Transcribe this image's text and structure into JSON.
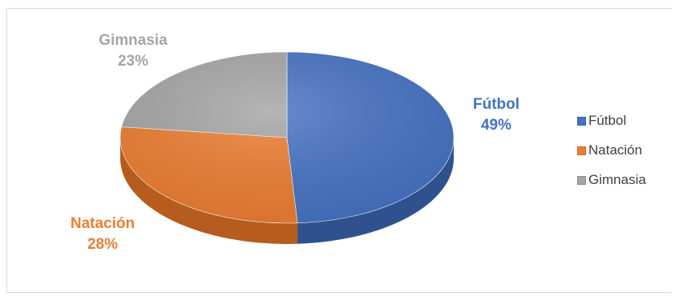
{
  "chart_data": {
    "type": "pie",
    "title": "",
    "slices": [
      {
        "name": "Fútbol",
        "value": 49,
        "label": "49%",
        "color": "#4472c4",
        "side": "#2f528f",
        "text_color": "#4472c4"
      },
      {
        "name": "Natación",
        "value": 28,
        "label": "28%",
        "color": "#ed7d31",
        "side": "#b65c1e",
        "text_color": "#ed7d31"
      },
      {
        "name": "Gimnasia",
        "value": 23,
        "label": "23%",
        "color": "#a5a5a5",
        "side": "#7c7c7c",
        "text_color": "#a5a5a5"
      }
    ],
    "legend_position": "right"
  }
}
